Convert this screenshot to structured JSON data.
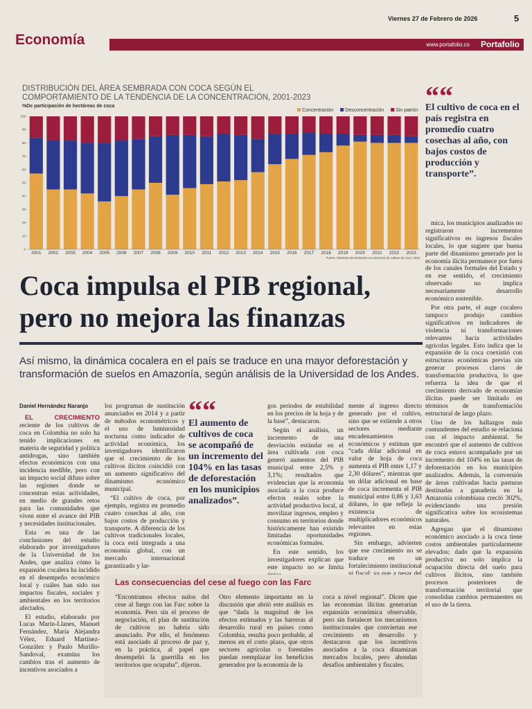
{
  "header": {
    "date": "Viernes 27 de Febrero de 2026",
    "page": "5",
    "section": "Economía",
    "website": "www.portafolio.co",
    "brand": "Portafolio"
  },
  "chart_data": {
    "type": "bar",
    "stacked": true,
    "title": "DISTRIBUCIÓN DEL ÁREA SEMBRADA CON COCA SEGÚN EL COMPORTAMIENTO DE LA TENDENCIA DE LA CONCENTRACIÓN, 2001-2023",
    "subtitle": "%De participación de hectáreas de coca",
    "source": "Fuente: Monitoreo de territorios con presencia de cultivos de coca | 2023",
    "categories": [
      "2001",
      "2002",
      "2003",
      "2004",
      "2005",
      "2006",
      "2007",
      "2008",
      "2009",
      "2010",
      "2011",
      "2012",
      "2013",
      "2014",
      "2015",
      "2016",
      "2017",
      "2018",
      "2019",
      "2020",
      "2021",
      "2022",
      "2023"
    ],
    "series": [
      {
        "name": "Concentración",
        "color": "#e2a445",
        "values": [
          57,
          45,
          45,
          42,
          36,
          40,
          45,
          50,
          41,
          46,
          49,
          51,
          52,
          58,
          64,
          68,
          71,
          73,
          78,
          81,
          80,
          80,
          80
        ]
      },
      {
        "name": "Desconcentración",
        "color": "#2d3b8e",
        "values": [
          27,
          37,
          37,
          38,
          44,
          42,
          38,
          35,
          45,
          40,
          36,
          36,
          34,
          25,
          23,
          19,
          17,
          14,
          9,
          5,
          6,
          6,
          5
        ]
      },
      {
        "name": "Sin patrón",
        "color": "#9c1d3d",
        "values": [
          16,
          18,
          18,
          20,
          20,
          18,
          17,
          15,
          14,
          14,
          15,
          13,
          14,
          17,
          13,
          13,
          12,
          13,
          13,
          14,
          14,
          14,
          15
        ]
      }
    ],
    "ylim": [
      0,
      100
    ],
    "yticks": [
      0,
      10,
      20,
      30,
      40,
      50,
      60,
      70,
      80,
      90,
      100
    ],
    "legend": "top-right"
  },
  "pull_quote_1": "El cultivo de coca en el país registra en promedio cuatro cosechas al año, con bajos costos de producción y transporte”.",
  "right_column": [
    "mica, los municipios analizados no registraron incrementos significativos en ingresos fiscales locales, lo que sugiere que buena parte del dinamismo generado por la economía ilícita permanece por fuera de los canales formales del Estado y en ese sentido, el crecimiento observado no implica necesariamente desarrollo económico sostenible.",
    "Por otra parte, el auge cocalero tampoco produjo cambios significativos en indicadores de violencia ni transformaciones relevantes hacia actividades agrícolas legales. Esto indica que la expansión de la coca coexistió con estructuras económicas previas sin generar procesos claros de transformación productiva, lo que refuerza la idea de que el crecimiento derivado de economías ilícitas puede ser limitado en términos de transformación estructural de largo plazo.",
    "Uno de los hallazgos más contundentes del estudio se relaciona con el impacto ambiental. Se encontró que el aumento de cultivos de coca estuvo acompañado por un incremento del 104% en las tasas de deforestación en los municipios analizados. Además, la conversión de áreas cultivadas hacia pasturas destinadas a ganadería en la Amazonía colombiana creció 302%, evidenciando una presión significativa sobre los ecosistemas naturales.",
    "Agregan que el dinamismo económico asociado a la coca tiene costos ambientales particularmente elevados; dado que la expansión productiva no solo implica la ocupación directa del suelo para cultivos ilícitos, sino también procesos posteriores de transformación territorial que consolidan cambios permanentes en el uso de la tierra."
  ],
  "headline": "Coca impulsa el PIB regional, pero no mejora las finanzas",
  "subheadline": "Así mismo, la dinámica cocalera en el país se traduce en una mayor deforestación y transformación de suelos en Amazonía, según análisis de la Universidad de los Andes.",
  "byline": "Daniel Hernández Naranjo",
  "lead": "EL CRECIMIENTO",
  "columns": [
    [
      "reciente de los cultivos de coca en Colombia no solo ha tenido implicaciones en materia de seguridad y política antidrogas, sino también efectos económicos con una incidencia medible, pero con un impacto social difuso sobre las regiones donde se concentran estas actividades, en medio de grandes retos para las comunidades que viven entre el avance del PIB y necesidades institucionales.",
      "Esta es una de las conclusiones del estudio elaborado por investigadores de la Universidad de los Andes, que analiza cómo la expansión cocalera ha incidido en el desempeño económico local y cuáles han sido sus impactos fiscales, sociales y ambientales en los territorios afectados.",
      "El estudio, elaborado por Lucas Marín-Llanes, Manuel Fernández, María Alejandra Vélez, Eduard Martínez-González y Paulo Murillo-Sandoval, examina los cambios tras el aumento de incentivos asociados a"
    ],
    [
      "los programas de sustitución anunciados en 2014 y a partir de métodos econométricos y el uso de luminosidad nocturna como indicador de actividad económica, los investigadores identificaron que el crecimiento de los cultivos ilícitos coincidió con un aumento significativo del dinamismo económico municipal.",
      "“El cultivo de coca, por ejemplo, registra en promedio cuatro cosechas al año, con bajos costos de producción y transporte. A diferencia de los cultivos tradicionales locales, la coca está integrada a una economía global, con un mercado internacional garantizado y lar-"
    ],
    [
      "gos periodos de estabilidad en los precios de la hoja y de la base”, destacaron.",
      "Según el análisis, un incremento de una desviación estándar en el área cultivada con coca generó aumentos del PIB municipal entre 2,5% y 3,1%; resultados que evidencian que la economía asociada a la coca produce efectos reales sobre la actividad productiva local, al movilizar ingresos, empleo y consumo en territorios donde históricamente han existido limitadas oportunidades económicas formales.",
      "En este sentido, los investigadores explican que este impacto no se limita única-"
    ],
    [
      "mente al ingreso directo generado por el cultivo, sino que se extiende a otros sectores mediante encadenamientos económicos y estiman que “cada dólar adicional en valor de hoja de coca aumenta el PIB entre 1,17 y 2,30 dólares”, mientras que un dólar adicional en base de coca incrementa el PIB municipal entre 0,86 y 1,63 dólares, lo que refleja la existencia de multiplicadores económicos relevantes en estas regiones.",
      "Sin embargo, advierten que ese crecimiento no se traduce en un fortalecimiento institucional ni fiscal; ya que a pesar del aumento en actividad econó-"
    ]
  ],
  "pull_quote_2": "El aumento de cultivos de coca se acompañó de un incremento del 104% en las tasas de deforestación en los municipios analizados”.",
  "box": {
    "title": "Las consecuencias del cese al fuego con las Farc",
    "columns": [
      "“Encontramos efectos nulos del cese al fuego con las Farc sobre la economía. Pero sin el proceso de negociación, el plan de sustitución de cultivos no habría sido anunciado. Por ello, el fenómeno está asociado al proceso de paz y, en la práctica, al papel que desempeñó la guerrilla en los territorios que ocupaba”, dijeron.",
      "Otro elemento importante en la discusión que abrió este análisis es que “dada la magnitud de los efectos estimados y las barreras al desarrollo rural en países como Colombia, resulta poco probable, al menos en el corto plazo, que otros sectores agrícolas o forestales puedan reemplazar los beneficios generados por la economía de la",
      "coca a nivel regional”. Dicen que las economías ilícitas generarían expansión económica observable, pero sin fortalecer los mecanismos institucionales que conviertan ese crecimiento en desarrollo y destacaron que los incentivos asociados a la coca dinamizan mercados locales, pero ahondan desafíos ambientales y fiscales."
    ]
  }
}
